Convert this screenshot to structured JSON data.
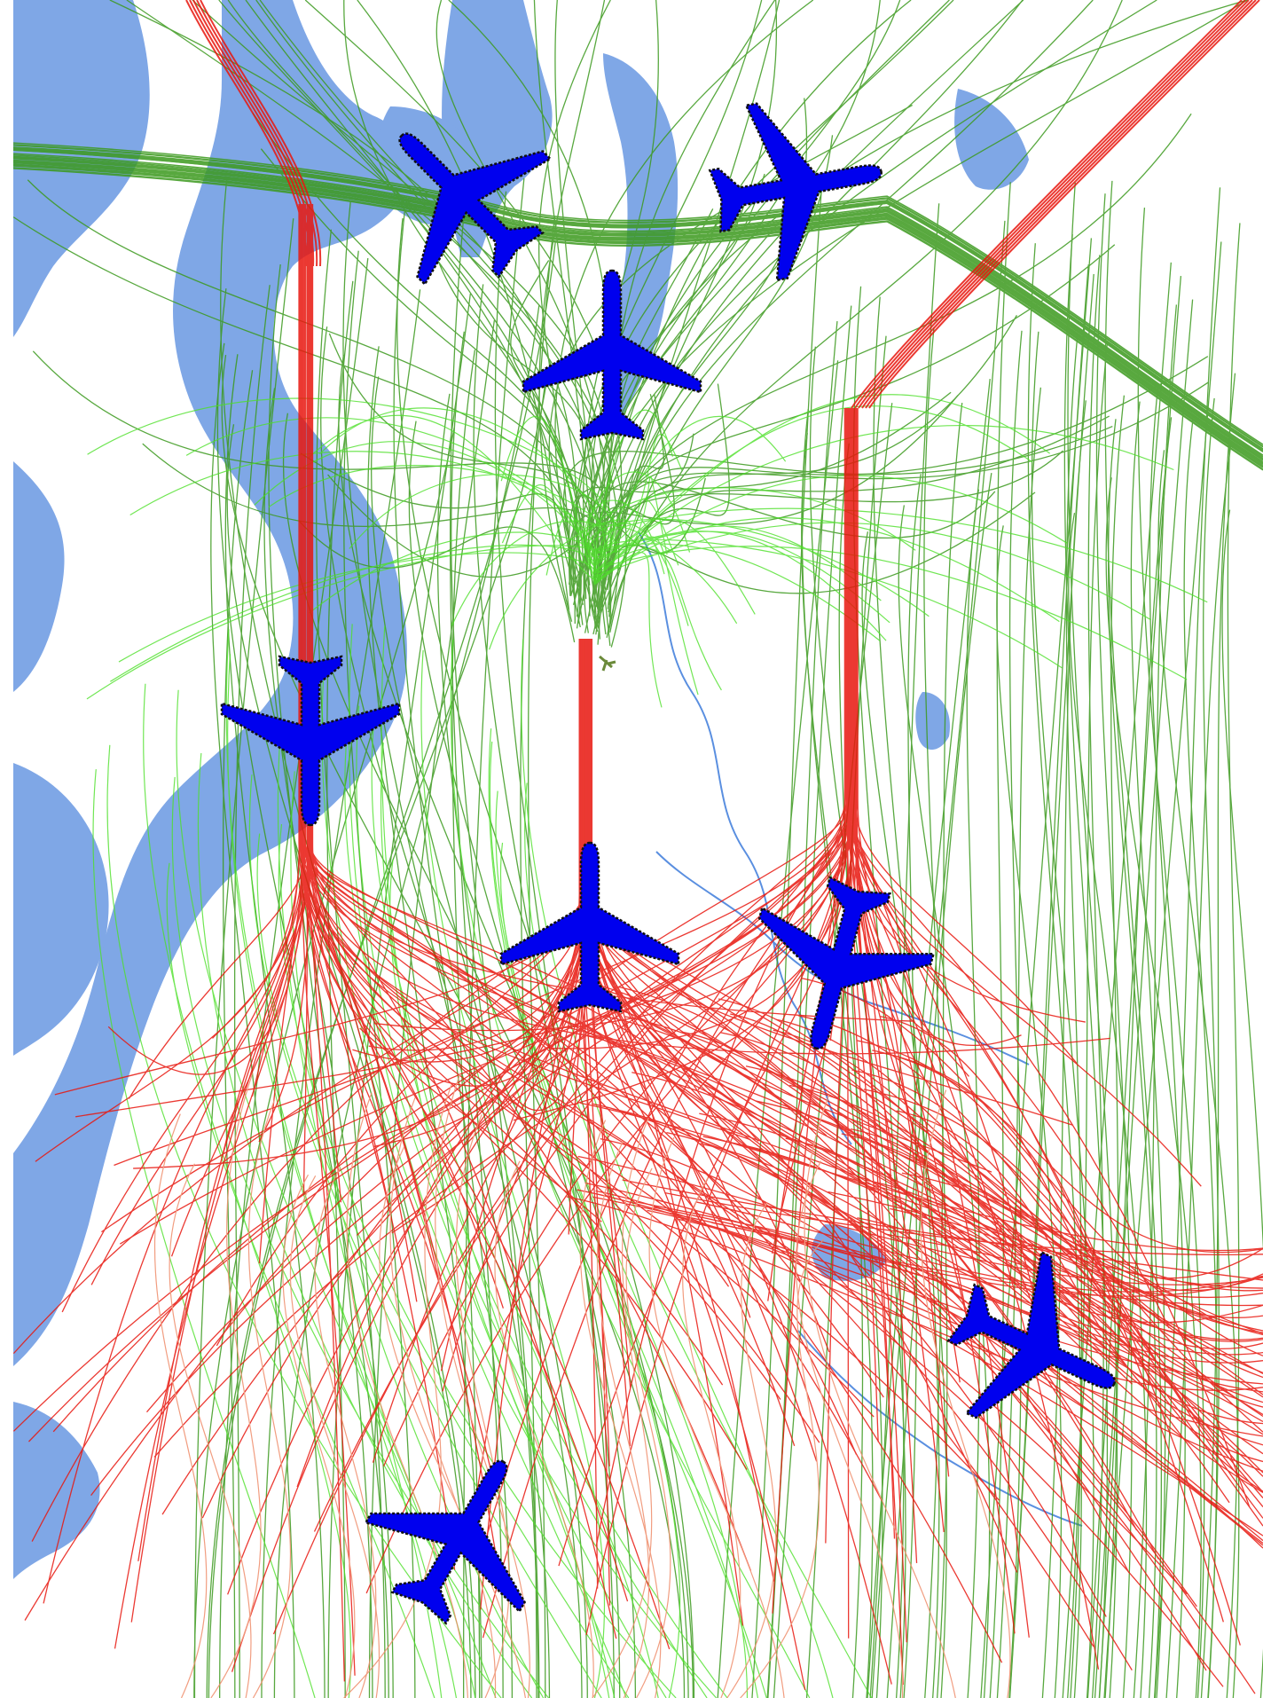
{
  "map": {
    "colors": {
      "background": "#ffffff",
      "water": "#7fa7e6",
      "water_edge": "#6e9ae0",
      "river": "#5a8fe0",
      "arrival_track_dark": "#3c9a1e",
      "arrival_track_light": "#4ee02a",
      "departure_track": "#e8170f",
      "departure_track_light": "#ef8c6a",
      "aircraft_fill": "#0000ee",
      "aircraft_outline": "#111111"
    },
    "aircraft": [
      {
        "id": "aircraft-1",
        "icon": "airplane-icon",
        "heading_deg": -45
      },
      {
        "id": "aircraft-2",
        "icon": "airplane-icon",
        "heading_deg": 30
      },
      {
        "id": "aircraft-3",
        "icon": "airplane-icon",
        "heading_deg": 0
      },
      {
        "id": "aircraft-4",
        "icon": "airplane-icon",
        "heading_deg": 180
      },
      {
        "id": "aircraft-5",
        "icon": "airplane-icon",
        "heading_deg": 0
      },
      {
        "id": "aircraft-6",
        "icon": "airplane-icon",
        "heading_deg": 190
      },
      {
        "id": "aircraft-7",
        "icon": "airplane-icon",
        "heading_deg": 130
      },
      {
        "id": "aircraft-8",
        "icon": "airplane-icon",
        "heading_deg": 30
      }
    ],
    "track_groups": [
      {
        "id": "arrivals-dark",
        "icon": "flight-track-arrival"
      },
      {
        "id": "arrivals-light",
        "icon": "flight-track-arrival"
      },
      {
        "id": "departures",
        "icon": "flight-track-departure"
      }
    ]
  }
}
